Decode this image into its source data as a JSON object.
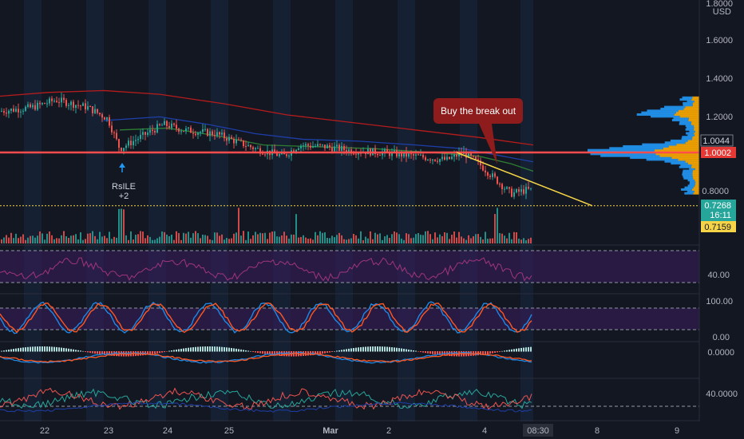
{
  "chart_data": {
    "type": "candlestick",
    "price_axis": {
      "currency": "USD",
      "top_label": "1.8000",
      "ticks": [
        "1.6000",
        "1.4000",
        "1.2000",
        "0.8000"
      ],
      "ylim": [
        0.71,
        1.8
      ]
    },
    "x_axis": {
      "ticks": [
        "22",
        "23",
        "24",
        "25",
        "Mar",
        "2",
        "4",
        "08:30",
        "8",
        "9"
      ]
    },
    "price_tags": {
      "level_a": "1.0044",
      "level_b": "1.0002",
      "last_price": "0.7268",
      "countdown": "16:11",
      "low_line": "0.7159"
    },
    "annotations": {
      "callout": "Buy the break out",
      "signal_name": "RsILE",
      "signal_value": "+2"
    },
    "rsi_panel": {
      "ticks": [
        "40.00"
      ],
      "bands": [
        30,
        70
      ]
    },
    "stoch_panel": {
      "ticks": [
        "100.00",
        "0.00"
      ],
      "bands": [
        20,
        80
      ]
    },
    "macd_panel": {
      "ticks": [
        "0.0000"
      ]
    },
    "dmi_panel": {
      "ticks": [
        "40.0000"
      ]
    },
    "colors": {
      "background": "#131722",
      "up": "#26a69a",
      "down": "#ef5350",
      "resistance": "#ff4d4d",
      "trendline": "#f5d547",
      "ma_long": "#b71c1c",
      "ma_mid": "#1e3fa8",
      "ma_short": "#2e7d32",
      "rsi": "#a0357a",
      "stoch_k": "#1e88e5",
      "stoch_d": "#ff5722",
      "band_fill": "#3b1d5e",
      "volume_profile_a": "#2196f3",
      "volume_profile_b": "#f7a600"
    }
  }
}
